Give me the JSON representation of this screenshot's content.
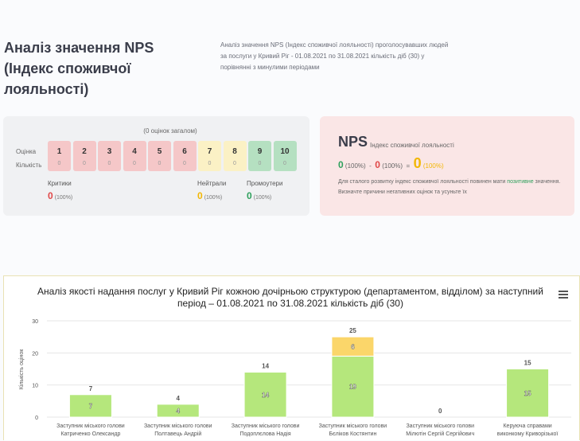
{
  "header": {
    "title_lines": [
      "Аналіз значення NPS",
      "(Індекс споживчої",
      "лояльності)"
    ],
    "desc_lines": [
      "Аналіз значення NPS (Індекс споживчої лояльності) проголосувавших людей",
      "за послуги у Кривий Ріг - 01.08.2021 по 31.08.2021 кількість діб (30) у",
      "порівнянні з минулими періодами"
    ]
  },
  "scores": {
    "total": "(0 оцінок загалом)",
    "row_score": "Оцінка",
    "row_count": "Кількість",
    "items": [
      {
        "n": "1",
        "c": "0",
        "color": "red"
      },
      {
        "n": "2",
        "c": "0",
        "color": "red"
      },
      {
        "n": "3",
        "c": "0",
        "color": "red"
      },
      {
        "n": "4",
        "c": "0",
        "color": "red"
      },
      {
        "n": "5",
        "c": "0",
        "color": "red"
      },
      {
        "n": "6",
        "c": "0",
        "color": "red"
      },
      {
        "n": "7",
        "c": "0",
        "color": "yellow"
      },
      {
        "n": "8",
        "c": "0",
        "color": "yellow"
      },
      {
        "n": "9",
        "c": "0",
        "color": "green"
      },
      {
        "n": "10",
        "c": "0",
        "color": "green"
      }
    ],
    "critics": {
      "label": "Критики",
      "value": "0",
      "pct": "(100%)"
    },
    "neutrals": {
      "label": "Нейтрали",
      "value": "0",
      "pct": "(100%)"
    },
    "promoters": {
      "label": "Промоутери",
      "value": "0",
      "pct": "(100%)"
    }
  },
  "nps": {
    "title": "NPS",
    "subtitle": "Індекс споживчої лояльності",
    "a": "0",
    "a_pct": "(100%)",
    "minus": "-",
    "b": "0",
    "b_pct": "(100%)",
    "eq": "=",
    "result": "0",
    "result_pct": "(100%)",
    "note_before": "Для сталого розвитку індекс споживчої лояльності повинен мати ",
    "note_hl": "позитивне",
    "note_after": " значення. Визначте причини негативних оцінок та усуньте їх",
    "colors": {
      "green": "#2ea05c",
      "red": "#e04848",
      "yellow": "#f2b705"
    }
  },
  "chart_data": {
    "type": "bar",
    "title": "Аналіз якості надання послуг у Кривий Ріг кожною дочірньою структурою (департаментом, відділом) за наступний період – 01.08.2021 по 31.08.2021 кількість діб (30)",
    "ylabel": "Кількість оцінок",
    "ylim": [
      0,
      30
    ],
    "yticks": [
      0,
      10,
      20,
      30
    ],
    "categories": [
      [
        "Заступник міського голови",
        "Катриченко Олександр"
      ],
      [
        "Заступник міського голови",
        "Полтавець Андрій"
      ],
      [
        "Заступник міського голови",
        "Подоплєлова Надія"
      ],
      [
        "Заступник міського голови",
        "Бєліков Костянтин"
      ],
      [
        "Заступник міського голови",
        "Мілютін Сергій Сергійович"
      ],
      [
        "Керуюча справами",
        "виконкому Криворізької"
      ]
    ],
    "series": [
      {
        "values": [
          7,
          4,
          14,
          19,
          0,
          15
        ],
        "color": "#b5e77c"
      },
      {
        "values": [
          0,
          0,
          0,
          6,
          0,
          0
        ],
        "color": "#fbd66a"
      }
    ],
    "segment_labels": [
      [
        "7",
        "4",
        "14",
        "19",
        "",
        "15"
      ],
      [
        "",
        "",
        "",
        "6",
        "",
        ""
      ]
    ],
    "totals": [
      "7",
      "4",
      "14",
      "25",
      "0",
      "15"
    ]
  }
}
